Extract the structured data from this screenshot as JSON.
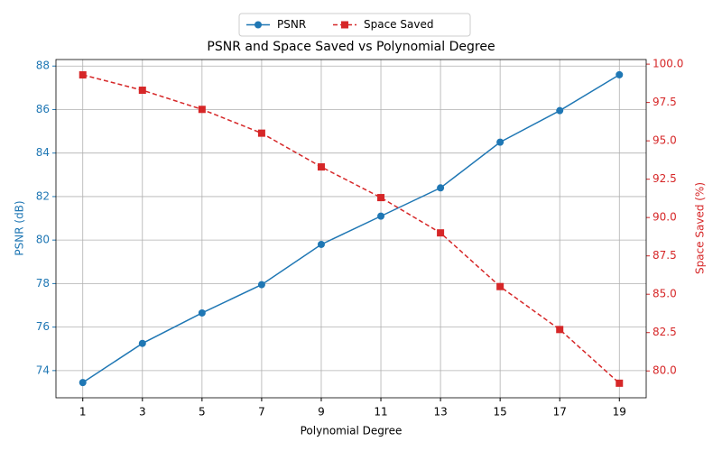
{
  "chart_data": {
    "type": "line",
    "title": "PSNR and Space Saved vs Polynomial Degree",
    "x_label": "Polynomial Degree",
    "y_label": "PSNR (dB)",
    "y2_label": "Space Saved (%)",
    "x": [
      1,
      3,
      5,
      7,
      9,
      11,
      13,
      15,
      17,
      19
    ],
    "xlim": [
      0.1,
      19.9
    ],
    "xticks": [
      1,
      3,
      5,
      7,
      9,
      11,
      13,
      15,
      17,
      19
    ],
    "ylim": [
      72.75,
      88.3
    ],
    "yticks": [
      74,
      76,
      78,
      80,
      82,
      84,
      86,
      88
    ],
    "y2lim": [
      78.25,
      100.3
    ],
    "y2ticks": [
      {
        "value": 80,
        "label": "80.0"
      },
      {
        "value": 82.5,
        "label": "82.5"
      },
      {
        "value": 85,
        "label": "85.0"
      },
      {
        "value": 87.5,
        "label": "87.5"
      },
      {
        "value": 90,
        "label": "90.0"
      },
      {
        "value": 92.5,
        "label": "92.5"
      },
      {
        "value": 95,
        "label": "95.0"
      },
      {
        "value": 97.5,
        "label": "97.5"
      },
      {
        "value": 100,
        "label": "100.0"
      }
    ],
    "grid": true,
    "legend": "upper center",
    "series": [
      {
        "name": "PSNR",
        "color": "#1f77b4",
        "marker": "circle",
        "linestyle": "solid",
        "axis": "y",
        "values": [
          73.45,
          75.25,
          76.65,
          77.95,
          79.8,
          81.1,
          82.4,
          84.5,
          85.95,
          87.6
        ]
      },
      {
        "name": "Space Saved",
        "color": "#d62728",
        "marker": "square",
        "linestyle": "dashed",
        "axis": "y2",
        "values": [
          99.3,
          98.3,
          97.05,
          95.5,
          93.3,
          91.3,
          89.0,
          85.5,
          82.7,
          79.2
        ]
      }
    ]
  }
}
